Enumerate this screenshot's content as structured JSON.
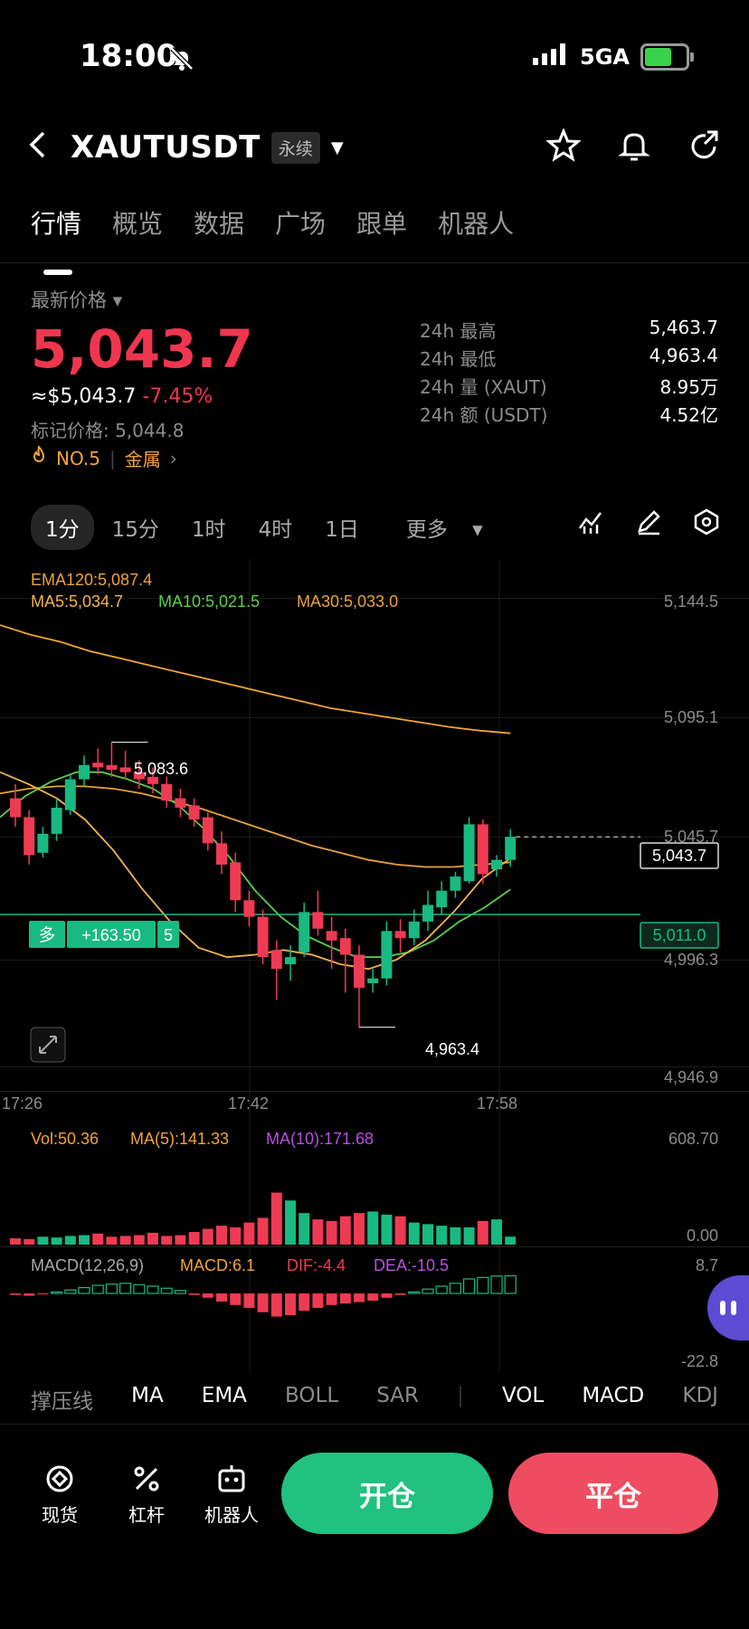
{
  "status_bar": {
    "time": "18:00",
    "network": "5GA"
  },
  "header": {
    "symbol": "XAUTUSDT",
    "tag": "永续"
  },
  "tabs": [
    {
      "label": "行情"
    },
    {
      "label": "概览"
    },
    {
      "label": "数据"
    },
    {
      "label": "广场"
    },
    {
      "label": "跟单"
    },
    {
      "label": "机器人"
    }
  ],
  "price": {
    "label": "最新价格",
    "last": "5,043.7",
    "approx": "≈$5,043.7",
    "change": "-7.45%",
    "mark": "标记价格: 5,044.8",
    "rank": "NO.5",
    "category": "金属"
  },
  "stats": [
    {
      "label": "24h  最高",
      "value": "5,463.7"
    },
    {
      "label": "24h  最低",
      "value": "4,963.4"
    },
    {
      "label": "24h  量 (XAUT)",
      "value": "8.95万"
    },
    {
      "label": "24h  额 (USDT)",
      "value": "4.52亿"
    }
  ],
  "intervals": [
    {
      "label": "1分"
    },
    {
      "label": "15分"
    },
    {
      "label": "1时"
    },
    {
      "label": "4时"
    },
    {
      "label": "1日"
    },
    {
      "label": "更多"
    }
  ],
  "chart_data": {
    "type": "candlestick",
    "indicators": {
      "ema": "EMA120:5,087.4",
      "ma5": "MA5:5,034.7",
      "ma10": "MA10:5,021.5",
      "ma30": "MA30:5,033.0"
    },
    "y_ticks": [
      "5,144.5",
      "5,095.1",
      "5,045.7",
      "4,996.3",
      "4,946.9"
    ],
    "x_ticks": [
      "17:26",
      "17:42",
      "17:58"
    ],
    "ylim": [
      4946.9,
      5144.5
    ],
    "high_label": "5,083.6",
    "low_label": "4,963.4",
    "last_price_tag": "5,043.7",
    "position": {
      "side": "多",
      "pnl": "+163.50",
      "qty": "5",
      "entry": "5,011.0",
      "entry_value": 5011.0
    },
    "candles": [
      {
        "o": 5060,
        "c": 5052,
        "h": 5066,
        "l": 5048
      },
      {
        "o": 5052,
        "c": 5036,
        "h": 5055,
        "l": 5032
      },
      {
        "o": 5037,
        "c": 5045,
        "h": 5048,
        "l": 5035
      },
      {
        "o": 5045,
        "c": 5056,
        "h": 5060,
        "l": 5042
      },
      {
        "o": 5055,
        "c": 5068,
        "h": 5070,
        "l": 5053
      },
      {
        "o": 5068,
        "c": 5074,
        "h": 5078,
        "l": 5065
      },
      {
        "o": 5075,
        "c": 5073,
        "h": 5081,
        "l": 5070
      },
      {
        "o": 5074,
        "c": 5072,
        "h": 5083.6,
        "l": 5069
      },
      {
        "o": 5073,
        "c": 5071,
        "h": 5080,
        "l": 5068
      },
      {
        "o": 5071,
        "c": 5068,
        "h": 5076,
        "l": 5064
      },
      {
        "o": 5069,
        "c": 5066,
        "h": 5073,
        "l": 5062
      },
      {
        "o": 5066,
        "c": 5059,
        "h": 5069,
        "l": 5056
      },
      {
        "o": 5060,
        "c": 5056,
        "h": 5064,
        "l": 5052
      },
      {
        "o": 5057,
        "c": 5051,
        "h": 5060,
        "l": 5048
      },
      {
        "o": 5052,
        "c": 5041,
        "h": 5054,
        "l": 5038
      },
      {
        "o": 5041,
        "c": 5032,
        "h": 5046,
        "l": 5028
      },
      {
        "o": 5033,
        "c": 5017,
        "h": 5037,
        "l": 5012
      },
      {
        "o": 5017,
        "c": 5010,
        "h": 5021,
        "l": 5006
      },
      {
        "o": 5010,
        "c": 4993,
        "h": 5013,
        "l": 4990
      },
      {
        "o": 4996,
        "c": 4988,
        "h": 5000,
        "l": 4975
      },
      {
        "o": 4990,
        "c": 4993,
        "h": 4998,
        "l": 4983
      },
      {
        "o": 4995,
        "c": 5012,
        "h": 5016,
        "l": 4993
      },
      {
        "o": 5012,
        "c": 5005,
        "h": 5021,
        "l": 5002
      },
      {
        "o": 5004,
        "c": 5000,
        "h": 5010,
        "l": 4988
      },
      {
        "o": 5001,
        "c": 4994,
        "h": 5005,
        "l": 4978
      },
      {
        "o": 4994,
        "c": 4980,
        "h": 4998,
        "l": 4963.4
      },
      {
        "o": 4982,
        "c": 4984,
        "h": 4988,
        "l": 4978
      },
      {
        "o": 4984,
        "c": 5004,
        "h": 5008,
        "l": 4981
      },
      {
        "o": 5004,
        "c": 5001,
        "h": 5009,
        "l": 4995
      },
      {
        "o": 5001,
        "c": 5008,
        "h": 5013,
        "l": 4998
      },
      {
        "o": 5008,
        "c": 5015,
        "h": 5021,
        "l": 5004
      },
      {
        "o": 5014,
        "c": 5021,
        "h": 5025,
        "l": 5011
      },
      {
        "o": 5021,
        "c": 5027,
        "h": 5029,
        "l": 5018
      },
      {
        "o": 5025,
        "c": 5049,
        "h": 5052,
        "l": 5024
      },
      {
        "o": 5049,
        "c": 5028,
        "h": 5051,
        "l": 5024
      },
      {
        "o": 5030,
        "c": 5034,
        "h": 5036,
        "l": 5027
      },
      {
        "o": 5034,
        "c": 5043.7,
        "h": 5047,
        "l": 5031
      }
    ],
    "ema120": [
      5133,
      5129,
      5126,
      5122,
      5119,
      5116,
      5113,
      5110,
      5107,
      5104,
      5101,
      5098,
      5096,
      5094,
      5092,
      5090,
      5088.5,
      5087.4
    ],
    "ma5": [
      5071,
      5066,
      5060,
      5051,
      5038,
      5022,
      5008,
      4997,
      4993,
      4994,
      4996,
      4994,
      4990,
      4988,
      4992,
      5000,
      5012,
      5026,
      5034.7
    ],
    "ma10": [
      5052,
      5061,
      5067,
      5071,
      5071,
      5068,
      5064,
      5057,
      5047,
      5035,
      5021,
      5010,
      5002,
      4997,
      4993,
      4993,
      4995,
      5000,
      5008,
      5014,
      5021.5
    ],
    "ma30": [
      5062,
      5064,
      5065,
      5065,
      5064,
      5062,
      5059,
      5056,
      5052,
      5048,
      5044,
      5040,
      5037,
      5034,
      5032,
      5031,
      5031,
      5032,
      5033.0
    ],
    "volume": {
      "label": "Vol:50.36",
      "ma5_label": "MA(5):141.33",
      "ma10_label": "MA(10):171.68",
      "y_ticks": [
        "608.70",
        "0.00"
      ],
      "values": [
        40,
        35,
        50,
        45,
        55,
        60,
        70,
        50,
        55,
        60,
        75,
        55,
        60,
        80,
        100,
        120,
        110,
        140,
        170,
        330,
        280,
        200,
        160,
        150,
        180,
        200,
        210,
        190,
        180,
        140,
        130,
        120,
        110,
        110,
        150,
        160,
        50.36
      ]
    },
    "macd": {
      "label": "MACD(12,26,9)",
      "macd_label": "MACD:6.1",
      "dif_label": "DIF:-4.4",
      "dea_label": "DEA:-10.5",
      "y_ticks": [
        "8.7",
        "-22.8"
      ],
      "hist": [
        -0.5,
        -0.8,
        -0.3,
        0.5,
        1.2,
        2.0,
        2.8,
        3.2,
        3.5,
        3.0,
        2.5,
        1.8,
        1.0,
        -0.5,
        -1.5,
        -2.8,
        -4.0,
        -5.0,
        -6.5,
        -8.0,
        -7.5,
        -6.0,
        -5.0,
        -4.0,
        -3.5,
        -3.0,
        -2.5,
        -1.5,
        -0.5,
        0.5,
        1.5,
        2.5,
        3.5,
        5.0,
        5.5,
        6.0,
        6.1
      ]
    }
  },
  "indicator_tabs": [
    {
      "label": "撑压线"
    },
    {
      "label": "MA"
    },
    {
      "label": "EMA"
    },
    {
      "label": "BOLL"
    },
    {
      "label": "SAR"
    },
    {
      "label": "VOL"
    },
    {
      "label": "MACD"
    },
    {
      "label": "KDJ"
    }
  ],
  "bottom_nav": [
    {
      "label": "现货"
    },
    {
      "label": "杠杆"
    },
    {
      "label": "机器人"
    }
  ],
  "actions": {
    "open": "开仓",
    "close": "平仓"
  },
  "colors": {
    "up": "#19b982",
    "down": "#ee3b53",
    "ema": "#f2a33a",
    "ma5": "#f5b34d",
    "ma10": "#5ccf4a",
    "ma30": "#e8a33d",
    "purple": "#b850e0"
  }
}
